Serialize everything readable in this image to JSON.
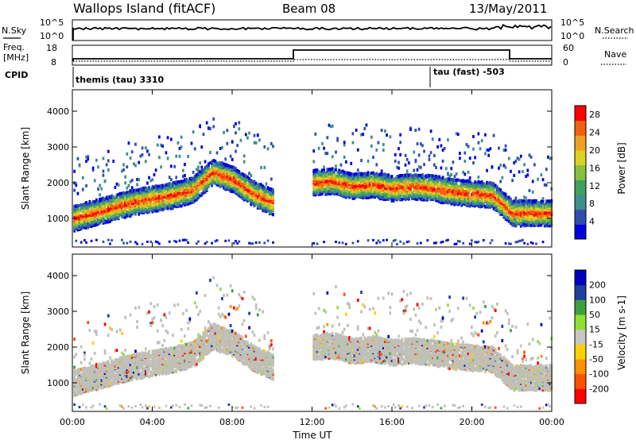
{
  "header": {
    "title": "Wallops Island (fitACF)",
    "beam": "Beam 08",
    "date": "13/May/2011"
  },
  "top_panels": {
    "nsky_label": "N.Sky",
    "nsearch_label": "N.Search",
    "freq_label_1": "Freq.",
    "freq_label_2": "[MHz]",
    "nave_label": "Nave",
    "cpid_label": "CPID",
    "nsky_ticks": [
      "10^5",
      "10^0"
    ],
    "nsearch_ticks": [
      "10^5",
      "10^0"
    ],
    "freq_ticks": [
      "18",
      "8"
    ],
    "nave_ticks": [
      "60",
      "0"
    ],
    "cpid_1": "themis (tau) 3310",
    "cpid_2": "tau (fast) -503"
  },
  "colors": {
    "power_scale": [
      "#0000e0",
      "#2f4fb0",
      "#3f8f8f",
      "#3fa060",
      "#88c040",
      "#e0d020",
      "#f0a020",
      "#f06010",
      "#ff0000"
    ],
    "velocity_scale": [
      "#ff0000",
      "#ff5000",
      "#ff9000",
      "#ffd000",
      "#c8c8c0",
      "#90e030",
      "#40a040",
      "#2040a0",
      "#0000c0"
    ],
    "ground_scatter": "#c0c0b8"
  },
  "chart_data": [
    {
      "type": "heatmap",
      "title": "",
      "xlabel": "",
      "ylabel": "Slant Range [km]",
      "xlim": [
        "00:00",
        "24:00"
      ],
      "ylim": [
        200,
        4600
      ],
      "yticks": [
        1000,
        2000,
        3000,
        4000
      ],
      "colorbar": {
        "label": "Power [dB]",
        "ticks": [
          4,
          8,
          12,
          16,
          20,
          24,
          28
        ],
        "range": [
          0,
          30
        ]
      },
      "scatter_band_km": {
        "hours": [
          0,
          1,
          2,
          3,
          4,
          5,
          6,
          7,
          8,
          9,
          10,
          11,
          12,
          13,
          14,
          15,
          16,
          17,
          18,
          19,
          20,
          21,
          22,
          23,
          24
        ],
        "center": [
          1000,
          1150,
          1300,
          1450,
          1550,
          1650,
          1800,
          2300,
          2100,
          1700,
          1450,
          null,
          2000,
          2050,
          1900,
          1950,
          1850,
          1900,
          1850,
          1750,
          1700,
          1650,
          1150,
          1150,
          1150
        ]
      }
    },
    {
      "type": "heatmap",
      "title": "",
      "xlabel": "Time UT",
      "ylabel": "Slant Range [km]",
      "xlim": [
        "00:00",
        "24:00"
      ],
      "ylim": [
        200,
        4600
      ],
      "yticks": [
        1000,
        2000,
        3000,
        4000
      ],
      "xticks": [
        "00:00",
        "04:00",
        "08:00",
        "12:00",
        "16:00",
        "20:00",
        "00:00"
      ],
      "colorbar": {
        "label": "Velocity [m s-1]",
        "ticks": [
          200,
          100,
          50,
          15,
          -15,
          -50,
          -100,
          -200
        ]
      }
    }
  ]
}
